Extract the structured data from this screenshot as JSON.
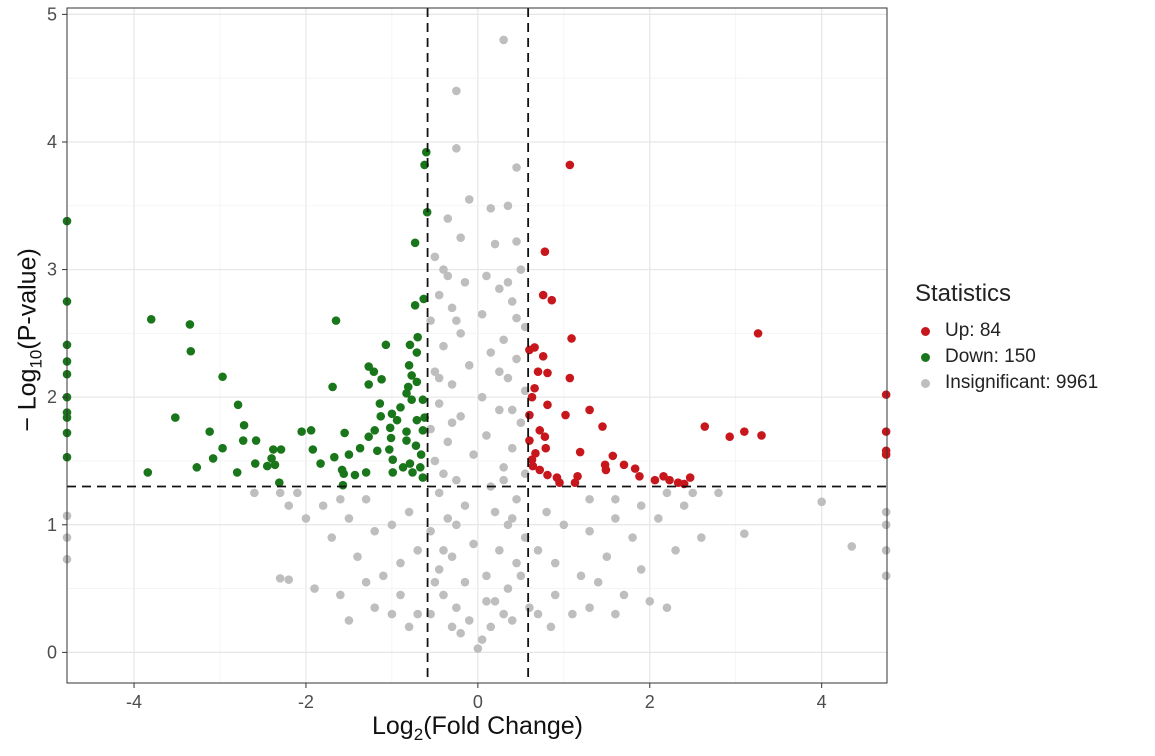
{
  "chart_data": {
    "type": "scatter",
    "title": "",
    "xlabel": {
      "prefix": "Log",
      "sub": "2",
      "suffix": "(Fold Change)"
    },
    "ylabel": {
      "prefix": "− Log",
      "sub": "10",
      "suffix": "(P-value)"
    },
    "xlim": [
      -4.78,
      4.76
    ],
    "ylim": [
      -0.24,
      5.05
    ],
    "xticks": [
      -4,
      -2,
      0,
      2,
      4
    ],
    "yticks": [
      0,
      1,
      2,
      3,
      4,
      5
    ],
    "grid": true,
    "thresholds": {
      "fold_change_x": [
        -0.585,
        0.585
      ],
      "pvalue_y": 1.3
    },
    "legend": {
      "title": "Statistics",
      "placement": "right"
    },
    "series": [
      {
        "name": "Up: 84",
        "color": "#C8171C",
        "points": [
          [
            1.07,
            3.82
          ],
          [
            0.78,
            3.14
          ],
          [
            0.76,
            2.8
          ],
          [
            0.86,
            2.76
          ],
          [
            3.26,
            2.5
          ],
          [
            1.09,
            2.46
          ],
          [
            0.66,
            2.39
          ],
          [
            0.6,
            2.37
          ],
          [
            0.76,
            2.32
          ],
          [
            0.81,
            2.19
          ],
          [
            0.7,
            2.2
          ],
          [
            1.07,
            2.15
          ],
          [
            0.66,
            2.07
          ],
          [
            0.63,
            2.0
          ],
          [
            0.81,
            1.94
          ],
          [
            1.02,
            1.86
          ],
          [
            1.3,
            1.9
          ],
          [
            0.6,
            1.86
          ],
          [
            0.72,
            1.74
          ],
          [
            0.78,
            1.69
          ],
          [
            1.45,
            1.77
          ],
          [
            2.64,
            1.77
          ],
          [
            2.93,
            1.69
          ],
          [
            3.3,
            1.7
          ],
          [
            3.1,
            1.73
          ],
          [
            0.67,
            1.56
          ],
          [
            0.79,
            1.6
          ],
          [
            1.19,
            1.57
          ],
          [
            1.48,
            1.47
          ],
          [
            1.57,
            1.54
          ],
          [
            1.49,
            1.43
          ],
          [
            1.7,
            1.47
          ],
          [
            1.83,
            1.44
          ],
          [
            1.88,
            1.38
          ],
          [
            2.06,
            1.35
          ],
          [
            2.16,
            1.38
          ],
          [
            2.23,
            1.35
          ],
          [
            2.33,
            1.33
          ],
          [
            2.47,
            1.37
          ],
          [
            2.4,
            1.32
          ],
          [
            0.64,
            1.46
          ],
          [
            0.72,
            1.43
          ],
          [
            0.81,
            1.39
          ],
          [
            0.92,
            1.37
          ],
          [
            1.16,
            1.38
          ],
          [
            0.95,
            1.33
          ],
          [
            1.13,
            1.33
          ],
          [
            0.6,
            1.66
          ],
          [
            0.63,
            1.51
          ],
          [
            4.75,
            2.02
          ],
          [
            4.75,
            1.73
          ],
          [
            4.75,
            1.58
          ],
          [
            4.75,
            1.55
          ]
        ]
      },
      {
        "name": "Down: 150",
        "color": "#1A761A",
        "points": [
          [
            -0.6,
            3.92
          ],
          [
            -0.62,
            3.82
          ],
          [
            -0.59,
            3.45
          ],
          [
            -0.73,
            3.21
          ],
          [
            -0.63,
            2.77
          ],
          [
            -0.73,
            2.72
          ],
          [
            -3.8,
            2.61
          ],
          [
            -3.35,
            2.57
          ],
          [
            -3.34,
            2.36
          ],
          [
            -1.65,
            2.6
          ],
          [
            -1.07,
            2.41
          ],
          [
            -0.79,
            2.41
          ],
          [
            -0.7,
            2.47
          ],
          [
            -0.71,
            2.35
          ],
          [
            -2.97,
            2.16
          ],
          [
            -1.27,
            2.24
          ],
          [
            -1.21,
            2.2
          ],
          [
            -1.12,
            2.14
          ],
          [
            -1.27,
            2.1
          ],
          [
            -1.69,
            2.08
          ],
          [
            -0.8,
            2.25
          ],
          [
            -0.77,
            2.17
          ],
          [
            -0.71,
            2.12
          ],
          [
            -0.81,
            2.08
          ],
          [
            -0.77,
            1.98
          ],
          [
            -0.64,
            1.98
          ],
          [
            -2.79,
            1.94
          ],
          [
            -1.14,
            1.95
          ],
          [
            -0.9,
            1.92
          ],
          [
            -3.52,
            1.84
          ],
          [
            -2.72,
            1.78
          ],
          [
            -3.12,
            1.73
          ],
          [
            -2.73,
            1.66
          ],
          [
            -2.58,
            1.66
          ],
          [
            -2.97,
            1.6
          ],
          [
            -3.08,
            1.52
          ],
          [
            -3.27,
            1.45
          ],
          [
            -3.84,
            1.41
          ],
          [
            -2.8,
            1.41
          ],
          [
            -2.59,
            1.48
          ],
          [
            -2.45,
            1.46
          ],
          [
            -2.36,
            1.47
          ],
          [
            -2.4,
            1.52
          ],
          [
            -2.38,
            1.59
          ],
          [
            -2.29,
            1.59
          ],
          [
            -2.31,
            1.33
          ],
          [
            -2.05,
            1.73
          ],
          [
            -1.94,
            1.74
          ],
          [
            -1.92,
            1.59
          ],
          [
            -1.83,
            1.48
          ],
          [
            -1.67,
            1.53
          ],
          [
            -1.55,
            1.72
          ],
          [
            -1.5,
            1.55
          ],
          [
            -1.58,
            1.43
          ],
          [
            -1.56,
            1.4
          ],
          [
            -1.57,
            1.31
          ],
          [
            -1.43,
            1.39
          ],
          [
            -1.37,
            1.6
          ],
          [
            -1.3,
            1.41
          ],
          [
            -1.27,
            1.69
          ],
          [
            -1.2,
            1.74
          ],
          [
            -1.17,
            1.58
          ],
          [
            -1.13,
            1.85
          ],
          [
            -1.02,
            1.76
          ],
          [
            -1.01,
            1.68
          ],
          [
            -1.0,
            1.87
          ],
          [
            -1.03,
            1.59
          ],
          [
            -0.94,
            1.82
          ],
          [
            -0.83,
            1.73
          ],
          [
            -0.83,
            1.66
          ],
          [
            -0.72,
            1.62
          ],
          [
            -0.66,
            1.55
          ],
          [
            -0.99,
            1.51
          ],
          [
            -0.87,
            1.45
          ],
          [
            -0.79,
            1.48
          ],
          [
            -0.99,
            1.41
          ],
          [
            -0.76,
            1.41
          ],
          [
            -0.64,
            1.37
          ],
          [
            -0.67,
            1.45
          ],
          [
            -0.62,
            1.84
          ],
          [
            -0.64,
            1.74
          ],
          [
            -0.71,
            1.82
          ],
          [
            -0.83,
            2.03
          ],
          [
            -4.78,
            3.38
          ],
          [
            -4.78,
            2.75
          ],
          [
            -4.78,
            2.41
          ],
          [
            -4.78,
            2.28
          ],
          [
            -4.78,
            2.18
          ],
          [
            -4.78,
            2.0
          ],
          [
            -4.78,
            1.88
          ],
          [
            -4.78,
            1.84
          ],
          [
            -4.78,
            1.72
          ],
          [
            -4.78,
            1.53
          ]
        ]
      },
      {
        "name": "Insignificant: 9961",
        "color": "#BEBEBE",
        "points": [
          [
            0.3,
            4.8
          ],
          [
            -0.25,
            4.4
          ],
          [
            -0.25,
            3.95
          ],
          [
            0.45,
            3.8
          ],
          [
            0.35,
            3.5
          ],
          [
            0.15,
            3.48
          ],
          [
            -0.1,
            3.55
          ],
          [
            -0.35,
            3.4
          ],
          [
            -0.2,
            3.25
          ],
          [
            0.2,
            3.2
          ],
          [
            0.45,
            3.22
          ],
          [
            -0.5,
            3.1
          ],
          [
            -0.4,
            3.0
          ],
          [
            0.5,
            3.0
          ],
          [
            0.1,
            2.95
          ],
          [
            -0.15,
            2.9
          ],
          [
            0.25,
            2.85
          ],
          [
            -0.45,
            2.8
          ],
          [
            0.4,
            2.75
          ],
          [
            -0.3,
            2.7
          ],
          [
            0.05,
            2.65
          ],
          [
            -0.55,
            2.6
          ],
          [
            0.55,
            2.55
          ],
          [
            -0.2,
            2.5
          ],
          [
            0.3,
            2.45
          ],
          [
            -0.4,
            2.4
          ],
          [
            0.15,
            2.35
          ],
          [
            0.45,
            2.3
          ],
          [
            -0.1,
            2.25
          ],
          [
            -0.5,
            2.2
          ],
          [
            0.35,
            2.15
          ],
          [
            -0.3,
            2.1
          ],
          [
            0.55,
            2.05
          ],
          [
            0.05,
            2.0
          ],
          [
            -0.45,
            1.95
          ],
          [
            0.25,
            1.9
          ],
          [
            -0.2,
            1.85
          ],
          [
            0.5,
            1.8
          ],
          [
            -0.55,
            1.75
          ],
          [
            0.1,
            1.7
          ],
          [
            -0.35,
            1.65
          ],
          [
            0.4,
            1.6
          ],
          [
            -0.05,
            1.55
          ],
          [
            -0.5,
            1.5
          ],
          [
            0.3,
            1.45
          ],
          [
            0.55,
            1.4
          ],
          [
            -0.25,
            1.35
          ],
          [
            0.15,
            1.3
          ],
          [
            -0.45,
            1.25
          ],
          [
            0.45,
            1.2
          ],
          [
            -0.15,
            1.15
          ],
          [
            0.2,
            1.1
          ],
          [
            -0.35,
            1.05
          ],
          [
            0.35,
            1.0
          ],
          [
            -0.55,
            0.95
          ],
          [
            0.55,
            0.9
          ],
          [
            -0.05,
            0.85
          ],
          [
            0.25,
            0.8
          ],
          [
            -0.3,
            0.75
          ],
          [
            0.45,
            0.7
          ],
          [
            -0.45,
            0.65
          ],
          [
            0.1,
            0.6
          ],
          [
            -0.15,
            0.55
          ],
          [
            0.35,
            0.5
          ],
          [
            -0.4,
            0.45
          ],
          [
            0.2,
            0.4
          ],
          [
            -0.25,
            0.35
          ],
          [
            0.3,
            0.3
          ],
          [
            -0.1,
            0.25
          ],
          [
            0.15,
            0.2
          ],
          [
            -0.2,
            0.15
          ],
          [
            0.05,
            0.1
          ],
          [
            0.0,
            0.03
          ],
          [
            -0.3,
            0.2
          ],
          [
            0.4,
            0.25
          ],
          [
            -0.55,
            0.3
          ],
          [
            0.6,
            0.35
          ],
          [
            -0.35,
            2.95
          ],
          [
            0.35,
            2.9
          ],
          [
            -0.25,
            2.6
          ],
          [
            0.45,
            2.62
          ],
          [
            -0.45,
            2.15
          ],
          [
            0.25,
            2.2
          ],
          [
            -0.3,
            1.8
          ],
          [
            0.4,
            1.9
          ],
          [
            -0.4,
            1.4
          ],
          [
            0.3,
            1.35
          ],
          [
            -0.25,
            1.0
          ],
          [
            0.4,
            1.05
          ],
          [
            -0.4,
            0.8
          ],
          [
            0.5,
            0.6
          ],
          [
            -0.5,
            0.55
          ],
          [
            0.1,
            0.4
          ],
          [
            -0.8,
            1.1
          ],
          [
            -1.0,
            1.0
          ],
          [
            -1.2,
            0.95
          ],
          [
            -1.5,
            1.05
          ],
          [
            -1.8,
            1.15
          ],
          [
            -2.1,
            1.25
          ],
          [
            -2.3,
            1.25
          ],
          [
            -2.2,
            1.15
          ],
          [
            -2.0,
            1.05
          ],
          [
            -1.7,
            0.9
          ],
          [
            -1.4,
            0.75
          ],
          [
            -1.1,
            0.6
          ],
          [
            -0.9,
            0.45
          ],
          [
            -0.7,
            0.3
          ],
          [
            -1.3,
            0.55
          ],
          [
            -1.6,
            0.45
          ],
          [
            -1.9,
            0.5
          ],
          [
            -2.2,
            0.57
          ],
          [
            -2.3,
            0.58
          ],
          [
            -1.0,
            0.3
          ],
          [
            -0.8,
            0.2
          ],
          [
            -1.2,
            0.35
          ],
          [
            -1.5,
            0.25
          ],
          [
            -0.7,
            0.8
          ],
          [
            -0.9,
            0.7
          ],
          [
            -1.6,
            1.2
          ],
          [
            -1.3,
            1.2
          ],
          [
            -2.6,
            1.25
          ],
          [
            -4.78,
            1.07
          ],
          [
            -4.78,
            0.9
          ],
          [
            -4.78,
            0.73
          ],
          [
            0.8,
            1.1
          ],
          [
            1.0,
            1.0
          ],
          [
            1.3,
            0.95
          ],
          [
            1.6,
            1.05
          ],
          [
            1.9,
            1.15
          ],
          [
            2.2,
            1.25
          ],
          [
            2.5,
            1.25
          ],
          [
            2.4,
            1.15
          ],
          [
            2.1,
            1.05
          ],
          [
            1.8,
            0.9
          ],
          [
            1.5,
            0.75
          ],
          [
            1.2,
            0.6
          ],
          [
            0.9,
            0.45
          ],
          [
            0.7,
            0.3
          ],
          [
            1.4,
            0.55
          ],
          [
            1.7,
            0.45
          ],
          [
            2.0,
            0.4
          ],
          [
            2.2,
            0.35
          ],
          [
            1.1,
            0.3
          ],
          [
            0.85,
            0.2
          ],
          [
            1.3,
            0.35
          ],
          [
            1.6,
            0.3
          ],
          [
            0.7,
            0.8
          ],
          [
            0.9,
            0.7
          ],
          [
            1.6,
            1.2
          ],
          [
            1.3,
            1.2
          ],
          [
            2.8,
            1.25
          ],
          [
            4.0,
            1.18
          ],
          [
            4.35,
            0.83
          ],
          [
            3.1,
            0.93
          ],
          [
            4.75,
            1.1
          ],
          [
            4.75,
            1.0
          ],
          [
            4.75,
            0.8
          ],
          [
            4.75,
            0.6
          ],
          [
            2.6,
            0.9
          ],
          [
            2.3,
            0.8
          ],
          [
            1.9,
            0.65
          ]
        ]
      }
    ]
  }
}
